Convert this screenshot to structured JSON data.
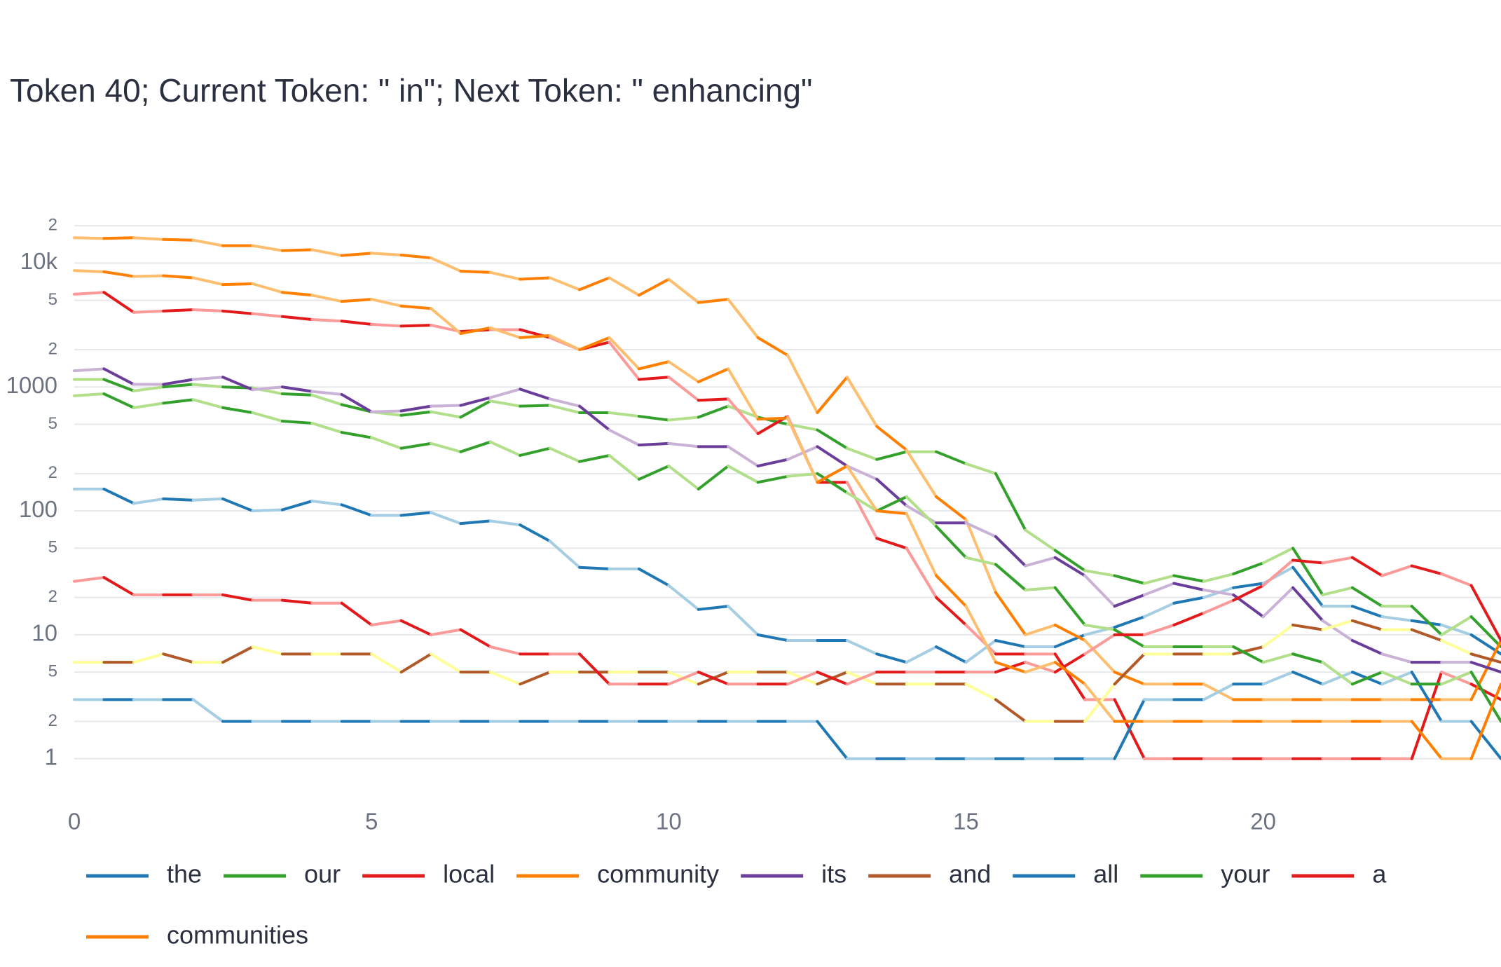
{
  "chart_data": {
    "type": "line",
    "title": "Token 40; Current Token: \" in\"; Next Token: \" enhancing\"",
    "x": [
      0,
      0.5,
      1,
      1.5,
      2,
      2.5,
      3,
      3.5,
      4,
      4.5,
      5,
      5.5,
      6,
      6.5,
      7,
      7.5,
      8,
      8.5,
      9,
      9.5,
      10,
      10.5,
      11,
      11.5,
      12,
      12.5,
      13,
      13.5,
      14,
      14.5,
      15,
      15.5,
      16,
      16.5,
      17,
      17.5,
      18,
      18.5,
      19,
      19.5,
      20,
      20.5,
      21,
      21.5,
      22,
      22.5,
      23,
      23.5,
      24
    ],
    "xlim": [
      0,
      24
    ],
    "xticks": [
      0,
      5,
      10,
      15,
      20
    ],
    "log_y": true,
    "ylim": [
      0.6,
      25000
    ],
    "yticks": [
      1,
      2,
      5,
      10,
      {
        "value": 20,
        "label": "2"
      },
      {
        "value": 50,
        "label": "5"
      },
      100,
      {
        "value": 200,
        "label": "2"
      },
      {
        "value": 500,
        "label": "5"
      },
      1000,
      {
        "value": 2000,
        "label": "2"
      },
      {
        "value": 5000,
        "label": "5"
      },
      {
        "value": 10000,
        "label": "10k"
      },
      {
        "value": 20000,
        "label": "2"
      }
    ],
    "grid": true,
    "series": [
      {
        "name": "the",
        "color": "#1f78b4",
        "alt_color": "#a6cee3",
        "values": [
          150,
          150,
          115,
          125,
          122,
          125,
          100,
          102,
          120,
          112,
          92,
          92,
          97,
          79,
          83,
          77,
          57,
          35,
          34,
          34,
          25,
          16,
          17,
          10,
          9,
          9,
          9,
          7,
          6,
          8,
          6,
          9,
          8,
          8,
          10,
          11.5,
          14,
          18,
          20,
          24,
          26,
          35,
          17,
          17,
          14,
          13,
          12,
          10,
          7
        ]
      },
      {
        "name": "our",
        "color": "#33a02c",
        "alt_color": "#b2df8a",
        "values": [
          1150,
          1150,
          930,
          1000,
          1050,
          1000,
          980,
          880,
          860,
          720,
          630,
          590,
          630,
          570,
          770,
          700,
          710,
          620,
          620,
          580,
          540,
          570,
          700,
          570,
          500,
          450,
          320,
          260,
          300,
          300,
          240,
          200,
          70,
          48,
          33,
          30,
          26,
          30,
          27,
          31,
          38,
          50,
          21,
          24,
          17,
          17,
          10,
          14,
          8
        ]
      },
      {
        "name": "local",
        "color": "#e31a1c",
        "alt_color": "#fb9a99",
        "values": [
          5600,
          5800,
          4000,
          4100,
          4200,
          4100,
          3900,
          3700,
          3500,
          3400,
          3200,
          3100,
          3150,
          2800,
          2900,
          2900,
          2500,
          2000,
          2300,
          1150,
          1200,
          780,
          800,
          420,
          580,
          170,
          170,
          60,
          50,
          20,
          12,
          7,
          7,
          7,
          3,
          3,
          1,
          1,
          1,
          1,
          1,
          1,
          1,
          1,
          1,
          1,
          5,
          4,
          3
        ]
      },
      {
        "name": "community",
        "color": "#ff7f00",
        "alt_color": "#fdbf6f",
        "values": [
          16000,
          15800,
          16000,
          15500,
          15300,
          13800,
          13800,
          12600,
          12800,
          11500,
          12000,
          11600,
          11000,
          8600,
          8400,
          7400,
          7600,
          6100,
          7600,
          5500,
          7400,
          4800,
          5100,
          2500,
          1800,
          620,
          1200,
          480,
          310,
          130,
          85,
          22,
          10,
          12,
          9,
          5,
          4,
          4,
          4,
          3,
          3,
          3,
          3,
          3,
          3,
          3,
          3,
          3,
          9
        ]
      },
      {
        "name": "its",
        "color": "#6a3d9a",
        "alt_color": "#cab2d6",
        "values": [
          1350,
          1400,
          1050,
          1050,
          1150,
          1200,
          950,
          1000,
          920,
          870,
          630,
          640,
          700,
          710,
          820,
          960,
          800,
          700,
          450,
          340,
          350,
          330,
          330,
          230,
          260,
          330,
          230,
          180,
          110,
          80,
          80,
          62,
          36,
          42,
          30,
          17,
          21,
          26,
          23,
          21,
          14,
          24,
          13,
          9,
          7,
          6,
          6,
          6,
          5
        ]
      },
      {
        "name": "and",
        "color": "#b15928",
        "alt_color": "#ffff99",
        "values": [
          6,
          6,
          6,
          7,
          6,
          6,
          8,
          7,
          7,
          7,
          7,
          5,
          7,
          5,
          5,
          4,
          5,
          5,
          5,
          5,
          5,
          4,
          5,
          5,
          5,
          4,
          5,
          4,
          4,
          4,
          4,
          3,
          2,
          2,
          2,
          4,
          7,
          7,
          7,
          7,
          8,
          12,
          11,
          13,
          11,
          11,
          9,
          7,
          6
        ]
      },
      {
        "name": "all",
        "color": "#1f78b4",
        "alt_color": "#a6cee3",
        "values": [
          3,
          3,
          3,
          3,
          3,
          2,
          2,
          2,
          2,
          2,
          2,
          2,
          2,
          2,
          2,
          2,
          2,
          2,
          2,
          2,
          2,
          2,
          2,
          2,
          2,
          2,
          1,
          1,
          1,
          1,
          1,
          1,
          1,
          1,
          1,
          1,
          3,
          3,
          3,
          4,
          4,
          5,
          4,
          5,
          4,
          5,
          2,
          2,
          1
        ]
      },
      {
        "name": "your",
        "color": "#33a02c",
        "alt_color": "#b2df8a",
        "values": [
          850,
          880,
          680,
          740,
          790,
          680,
          620,
          530,
          510,
          430,
          390,
          320,
          350,
          300,
          360,
          280,
          320,
          250,
          280,
          180,
          230,
          150,
          230,
          170,
          190,
          200,
          140,
          100,
          130,
          75,
          42,
          37,
          23,
          24,
          12,
          11,
          8,
          8,
          8,
          8,
          6,
          7,
          6,
          4,
          5,
          4,
          4,
          5,
          2
        ]
      },
      {
        "name": "a",
        "color": "#e31a1c",
        "alt_color": "#fb9a99",
        "values": [
          27,
          29,
          21,
          21,
          21,
          21,
          19,
          19,
          18,
          18,
          12,
          13,
          10,
          11,
          8,
          7,
          7,
          7,
          4,
          4,
          4,
          5,
          4,
          4,
          4,
          5,
          4,
          5,
          5,
          5,
          5,
          5,
          6,
          5,
          7,
          10,
          10,
          12,
          15,
          19,
          25,
          40,
          38,
          42,
          30,
          36,
          31,
          25,
          9
        ]
      },
      {
        "name": "communities",
        "color": "#ff7f00",
        "alt_color": "#fdbf6f",
        "values": [
          8700,
          8500,
          7800,
          7900,
          7600,
          6700,
          6800,
          5800,
          5500,
          4900,
          5100,
          4500,
          4300,
          2700,
          3000,
          2500,
          2600,
          2000,
          2500,
          1400,
          1600,
          1100,
          1400,
          550,
          560,
          170,
          230,
          100,
          95,
          30,
          17,
          6,
          5,
          6,
          4,
          2,
          2,
          2,
          2,
          2,
          2,
          2,
          2,
          2,
          2,
          2,
          1,
          1,
          4
        ]
      }
    ]
  }
}
